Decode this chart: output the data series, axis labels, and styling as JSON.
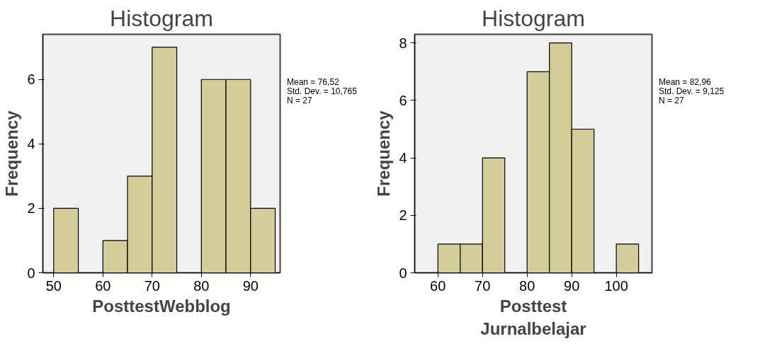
{
  "chart_data": [
    {
      "type": "histogram",
      "title": "Histogram",
      "xlabel": "PosttestWebblog",
      "ylabel": "Frequency",
      "color": "#d3ce97",
      "bins": [
        50,
        55,
        60,
        65,
        70,
        75,
        80,
        85,
        90,
        95
      ],
      "values": [
        2,
        0,
        1,
        3,
        7,
        0,
        6,
        6,
        2
      ],
      "xlim": [
        47.8,
        96
      ],
      "xticks": [
        50,
        60,
        70,
        80,
        90
      ],
      "ylim": [
        0,
        7.4
      ],
      "yticks": [
        0,
        2,
        4,
        6
      ],
      "grid": false,
      "annotations": [
        "Mean = 76,52",
        "Std. Dev. = 10,765",
        "N = 27"
      ]
    },
    {
      "type": "histogram",
      "title": "Histogram",
      "xlabel": "Posttest\nJurnalbelajar",
      "ylabel": "Frequency",
      "color": "#d3ce97",
      "bins": [
        60,
        65,
        70,
        75,
        80,
        85,
        90,
        95,
        100,
        105
      ],
      "values": [
        1,
        1,
        4,
        0,
        7,
        8,
        5,
        0,
        1
      ],
      "xlim": [
        54.8,
        108
      ],
      "xticks": [
        60,
        70,
        80,
        90,
        100
      ],
      "ylim": [
        0,
        8.3
      ],
      "yticks": [
        0,
        2,
        4,
        6,
        8
      ],
      "grid": false,
      "annotations": [
        "Mean = 82,96",
        "Std. Dev. = 9,125",
        "N = 27"
      ]
    }
  ]
}
